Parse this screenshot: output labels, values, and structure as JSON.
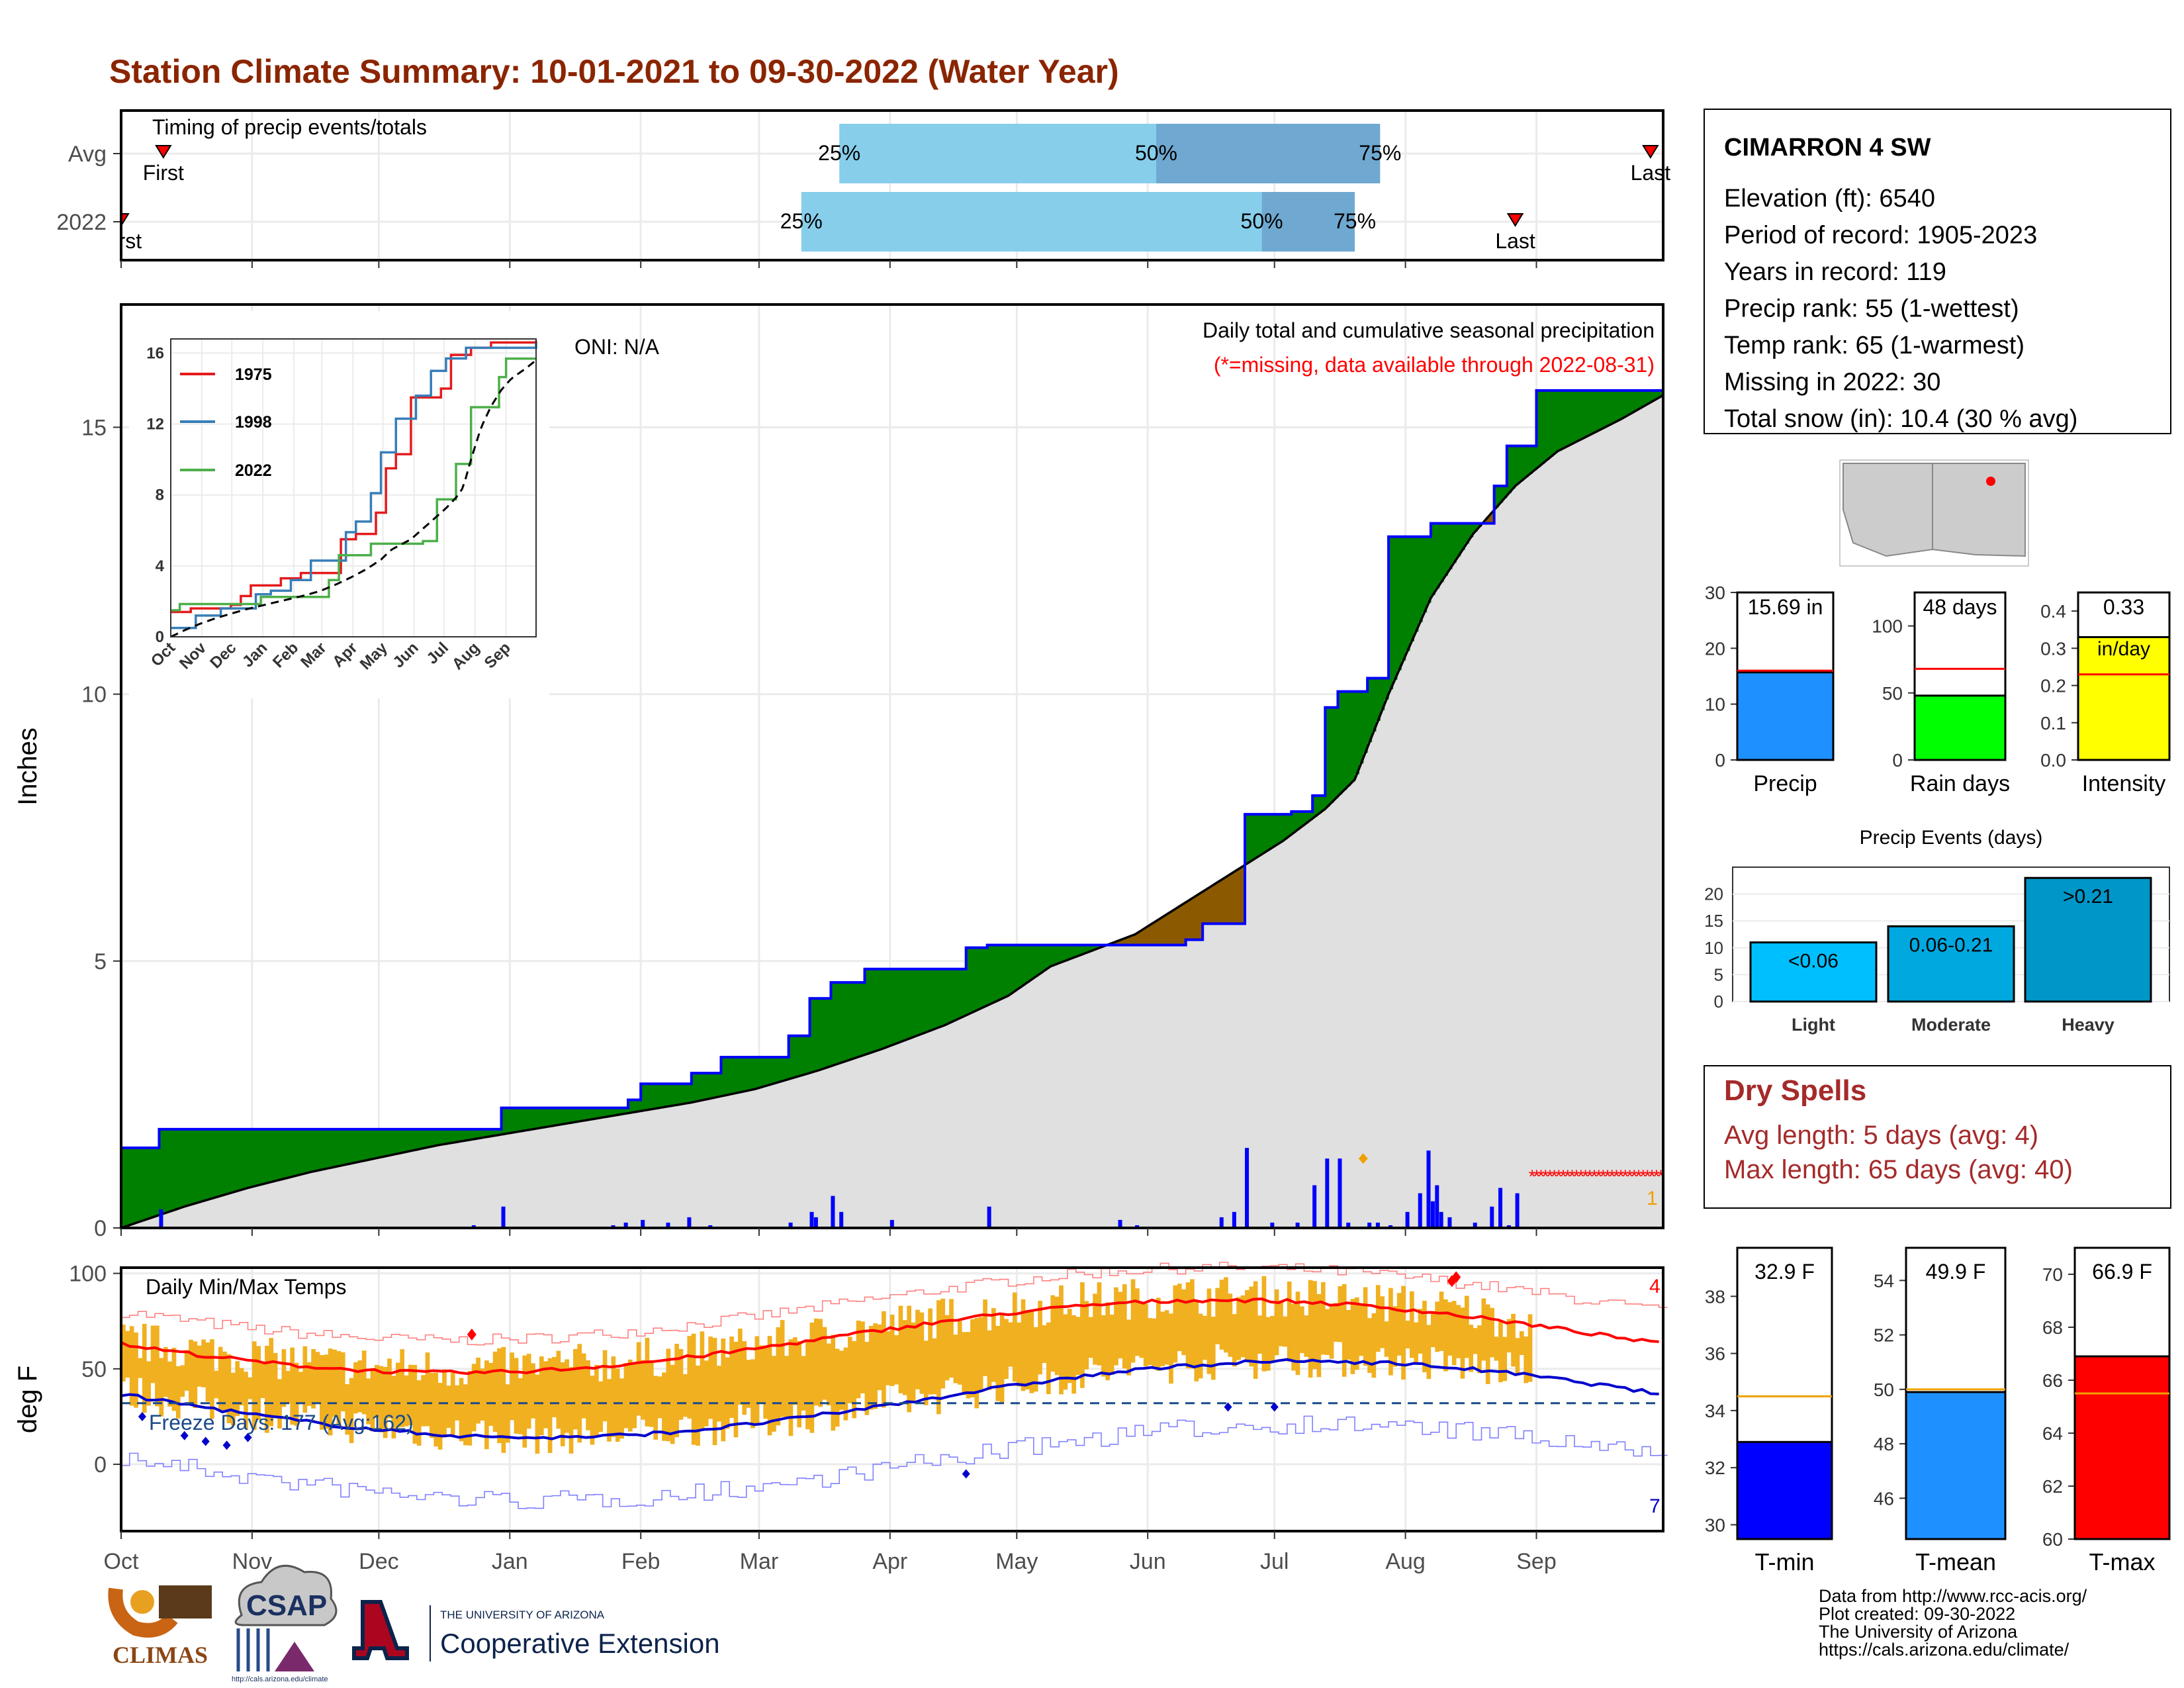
{
  "title": "Station Climate Summary: 10-01-2021 to 09-30-2022 (Water Year)",
  "colors": {
    "title": "#8b2500",
    "green": "#008000",
    "brown": "#8b5a00",
    "blue": "#0000ff",
    "red": "#ff0000",
    "orange": "#f0b020",
    "light_blue": "#87ceeb",
    "mid_blue": "#6fa8d0",
    "grey_fill": "#e0e0e0",
    "dry_red": "#a52a2a"
  },
  "timing": {
    "label": "Timing of precip events/totals",
    "rows": [
      "Avg",
      "2022"
    ],
    "avg": {
      "first_label": "First",
      "last_label": "Last",
      "first_day": 10,
      "last_day": 362,
      "p25_day": 170,
      "p50_day": 245,
      "p75_day": 298,
      "p25_label": "25%",
      "p50_label": "50%",
      "p75_label": "75%"
    },
    "y2022": {
      "first_label": "First",
      "last_label": "Last",
      "first_day": 0,
      "last_day": 330,
      "p25_day": 161,
      "p50_day": 270,
      "p75_day": 292,
      "p25_label": "25%",
      "p50_label": "50%",
      "p75_label": "75%"
    }
  },
  "months": [
    "Oct",
    "Nov",
    "Dec",
    "Jan",
    "Feb",
    "Mar",
    "Apr",
    "May",
    "Jun",
    "Jul",
    "Aug",
    "Sep"
  ],
  "precip_main": {
    "ylabel": "Inches",
    "y_ticks": [
      0,
      5,
      10,
      15
    ],
    "ylim": [
      0,
      17.3
    ],
    "oni_label": "ONI: N/A",
    "subtitle": "Daily total and cumulative seasonal precipitation",
    "missing_note": "(*=missing, data available through 2022-08-31)",
    "missing_count_label": "1",
    "cum_2022": [
      [
        0,
        1.5
      ],
      [
        9,
        1.5
      ],
      [
        9,
        1.85
      ],
      [
        90,
        1.85
      ],
      [
        90,
        2.25
      ],
      [
        120,
        2.25
      ],
      [
        120,
        2.4
      ],
      [
        123,
        2.4
      ],
      [
        123,
        2.7
      ],
      [
        123,
        2.7
      ],
      [
        135,
        2.7
      ],
      [
        135,
        2.9
      ],
      [
        142,
        2.9
      ],
      [
        142,
        3.2
      ],
      [
        158,
        3.2
      ],
      [
        158,
        3.6
      ],
      [
        163,
        3.6
      ],
      [
        163,
        4.3
      ],
      [
        168,
        4.3
      ],
      [
        168,
        4.6
      ],
      [
        176,
        4.6
      ],
      [
        176,
        4.85
      ],
      [
        200,
        4.85
      ],
      [
        200,
        5.25
      ],
      [
        205,
        5.25
      ],
      [
        205,
        5.3
      ],
      [
        220,
        5.3
      ],
      [
        220,
        5.3
      ],
      [
        252,
        5.3
      ],
      [
        252,
        5.4
      ],
      [
        256,
        5.4
      ],
      [
        256,
        5.7
      ],
      [
        266,
        5.7
      ],
      [
        266,
        7.75
      ],
      [
        277,
        7.75
      ],
      [
        277,
        7.8
      ],
      [
        282,
        7.8
      ],
      [
        282,
        8.1
      ],
      [
        285,
        8.1
      ],
      [
        285,
        9.75
      ],
      [
        288,
        9.75
      ],
      [
        288,
        10.05
      ],
      [
        295,
        10.05
      ],
      [
        295,
        10.3
      ],
      [
        300,
        10.3
      ],
      [
        300,
        12.95
      ],
      [
        310,
        12.95
      ],
      [
        310,
        13.2
      ],
      [
        325,
        13.2
      ],
      [
        325,
        13.9
      ],
      [
        328,
        13.9
      ],
      [
        328,
        14.65
      ],
      [
        335,
        14.65
      ],
      [
        335,
        15.69
      ],
      [
        365,
        15.69
      ]
    ],
    "cum_avg": [
      [
        0,
        0
      ],
      [
        15,
        0.4
      ],
      [
        30,
        0.75
      ],
      [
        45,
        1.05
      ],
      [
        60,
        1.3
      ],
      [
        75,
        1.55
      ],
      [
        90,
        1.75
      ],
      [
        105,
        1.95
      ],
      [
        120,
        2.15
      ],
      [
        135,
        2.35
      ],
      [
        150,
        2.6
      ],
      [
        165,
        2.95
      ],
      [
        180,
        3.35
      ],
      [
        195,
        3.8
      ],
      [
        210,
        4.35
      ],
      [
        220,
        4.9
      ],
      [
        240,
        5.5
      ],
      [
        260,
        6.5
      ],
      [
        275,
        7.25
      ],
      [
        285,
        7.85
      ],
      [
        292,
        8.4
      ],
      [
        300,
        10.0
      ],
      [
        310,
        11.8
      ],
      [
        320,
        13.0
      ],
      [
        330,
        13.9
      ],
      [
        340,
        14.55
      ],
      [
        355,
        15.15
      ],
      [
        365,
        15.6
      ]
    ],
    "daily": [
      [
        9,
        0.35
      ],
      [
        83,
        0.05
      ],
      [
        90,
        0.4
      ],
      [
        116,
        0.05
      ],
      [
        119,
        0.1
      ],
      [
        123,
        0.15
      ],
      [
        129,
        0.1
      ],
      [
        134,
        0.2
      ],
      [
        139,
        0.05
      ],
      [
        158,
        0.1
      ],
      [
        163,
        0.3
      ],
      [
        164,
        0.2
      ],
      [
        168,
        0.6
      ],
      [
        170,
        0.3
      ],
      [
        182,
        0.15
      ],
      [
        205,
        0.4
      ],
      [
        236,
        0.15
      ],
      [
        240,
        0.05
      ],
      [
        260,
        0.2
      ],
      [
        263,
        0.3
      ],
      [
        266,
        1.5
      ],
      [
        272,
        0.1
      ],
      [
        278,
        0.1
      ],
      [
        282,
        0.8
      ],
      [
        285,
        1.3
      ],
      [
        288,
        1.3
      ],
      [
        290,
        0.1
      ],
      [
        295,
        0.1
      ],
      [
        297,
        0.1
      ],
      [
        300,
        0.05
      ],
      [
        304,
        0.3
      ],
      [
        307,
        0.65
      ],
      [
        309,
        1.45
      ],
      [
        310,
        0.5
      ],
      [
        311,
        0.8
      ],
      [
        312,
        0.3
      ],
      [
        314,
        0.2
      ],
      [
        320,
        0.1
      ],
      [
        324,
        0.4
      ],
      [
        326,
        0.75
      ],
      [
        328,
        0.05
      ],
      [
        330,
        0.65
      ]
    ],
    "missing_start_day": 334,
    "missing_end_day": 365,
    "missing_y": 1.0
  },
  "inset": {
    "y_ticks": [
      0,
      4,
      8,
      12,
      16
    ],
    "legend": [
      "1975",
      "1998",
      "2022"
    ],
    "series_colors": [
      "#e41a1c",
      "#377eb8",
      "#4daf4a"
    ],
    "s1975": [
      [
        0,
        1.4
      ],
      [
        20,
        1.6
      ],
      [
        60,
        1.8
      ],
      [
        70,
        2.3
      ],
      [
        80,
        2.9
      ],
      [
        110,
        3.3
      ],
      [
        130,
        3.6
      ],
      [
        170,
        5.5
      ],
      [
        185,
        5.8
      ],
      [
        205,
        7.0
      ],
      [
        215,
        9.5
      ],
      [
        225,
        10.3
      ],
      [
        240,
        13.5
      ],
      [
        270,
        14.0
      ],
      [
        280,
        15.9
      ],
      [
        300,
        16.3
      ],
      [
        320,
        16.6
      ],
      [
        365,
        16.7
      ]
    ],
    "s1998": [
      [
        0,
        0.5
      ],
      [
        25,
        1.2
      ],
      [
        50,
        1.6
      ],
      [
        85,
        2.4
      ],
      [
        100,
        2.6
      ],
      [
        120,
        3.2
      ],
      [
        140,
        4.3
      ],
      [
        175,
        5.9
      ],
      [
        185,
        6.5
      ],
      [
        200,
        8.1
      ],
      [
        210,
        10.4
      ],
      [
        225,
        12.3
      ],
      [
        245,
        13.6
      ],
      [
        260,
        15.0
      ],
      [
        275,
        15.7
      ],
      [
        295,
        16.3
      ],
      [
        365,
        16.6
      ]
    ],
    "s2022": [
      [
        0,
        1.5
      ],
      [
        9,
        1.5
      ],
      [
        9,
        1.85
      ],
      [
        90,
        1.85
      ],
      [
        90,
        2.25
      ],
      [
        158,
        3.2
      ],
      [
        168,
        4.6
      ],
      [
        200,
        5.25
      ],
      [
        252,
        5.4
      ],
      [
        266,
        7.75
      ],
      [
        285,
        9.75
      ],
      [
        300,
        12.95
      ],
      [
        328,
        14.65
      ],
      [
        335,
        15.69
      ],
      [
        365,
        15.69
      ]
    ]
  },
  "temps": {
    "label": "Daily Min/Max Temps",
    "ylabel": "deg F",
    "y_ticks": [
      0,
      50,
      100
    ],
    "ylim": [
      -35,
      103
    ],
    "freeze_label": "Freeze Days: 177 (Avg:162)",
    "freeze_line": 32,
    "count_max_label": "4",
    "count_min_label": "7",
    "data_end_day": 334
  },
  "station": {
    "name": "CIMARRON 4 SW",
    "lines": [
      "Elevation (ft): 6540",
      "Period of record: 1905-2023",
      "Years in record: 119",
      "Precip rank: 55 (1-wettest)",
      "Temp rank: 65 (1-warmest)",
      "Missing in 2022: 30",
      "Total snow (in): 10.4 (30 % avg)"
    ]
  },
  "small_bars": [
    {
      "name": "Precip",
      "label": "15.69 in",
      "value": 15.69,
      "avg": 16.0,
      "ymax": 30,
      "ticks": [
        0,
        10,
        20,
        30
      ],
      "color": "#1e90ff"
    },
    {
      "name": "Rain days",
      "label": "48 days",
      "value": 48,
      "avg": 68,
      "ymax": 125,
      "ticks": [
        0,
        50,
        100
      ],
      "color": "#00ff00"
    },
    {
      "name": "Intensity",
      "label": "0.33",
      "sublabel": "in/day",
      "value": 0.33,
      "avg": 0.23,
      "ymax": 0.45,
      "ticks": [
        "0.0",
        "0.1",
        "0.2",
        "0.3",
        "0.4"
      ],
      "color": "#ffff00"
    }
  ],
  "events": {
    "title": "Precip Events (days)",
    "categories": [
      "Light",
      "Moderate",
      "Heavy"
    ],
    "labels": [
      "<0.06",
      "0.06-0.21",
      ">0.21"
    ],
    "values": [
      11,
      14,
      23
    ],
    "ticks": [
      0,
      5,
      10,
      15,
      20
    ],
    "ymax": 25
  },
  "dry": {
    "title": "Dry Spells",
    "avg": "Avg length: 5 days (avg: 4)",
    "max": "Max length: 65 days (avg: 40)"
  },
  "temp_bars": [
    {
      "name": "T-min",
      "label": "32.9 F",
      "value": 32.9,
      "avg": 34.5,
      "min": 29.5,
      "max": 39.7,
      "ticks": [
        30,
        32,
        34,
        36,
        38
      ],
      "color": "#0000ff"
    },
    {
      "name": "T-mean",
      "label": "49.9 F",
      "value": 49.9,
      "avg": 50.0,
      "min": 44.5,
      "max": 55.2,
      "ticks": [
        46,
        48,
        50,
        52,
        54
      ],
      "color": "#1e90ff"
    },
    {
      "name": "T-max",
      "label": "66.9 F",
      "value": 66.9,
      "avg": 65.5,
      "min": 60,
      "max": 71,
      "ticks": [
        60,
        62,
        64,
        66,
        68,
        70
      ],
      "color": "#ff0000"
    }
  ],
  "footer": {
    "lines": [
      "Data from http://www.rcc-acis.org/",
      "Plot created: 09-30-2022",
      "The University of Arizona",
      "https://cals.arizona.edu/climate/"
    ],
    "climas": "CLIMAS",
    "csap": "CSAP",
    "csap_url": "http://cals.arizona.edu/climate",
    "ua_small": "THE UNIVERSITY OF ARIZONA",
    "ua_big": "Cooperative Extension"
  }
}
